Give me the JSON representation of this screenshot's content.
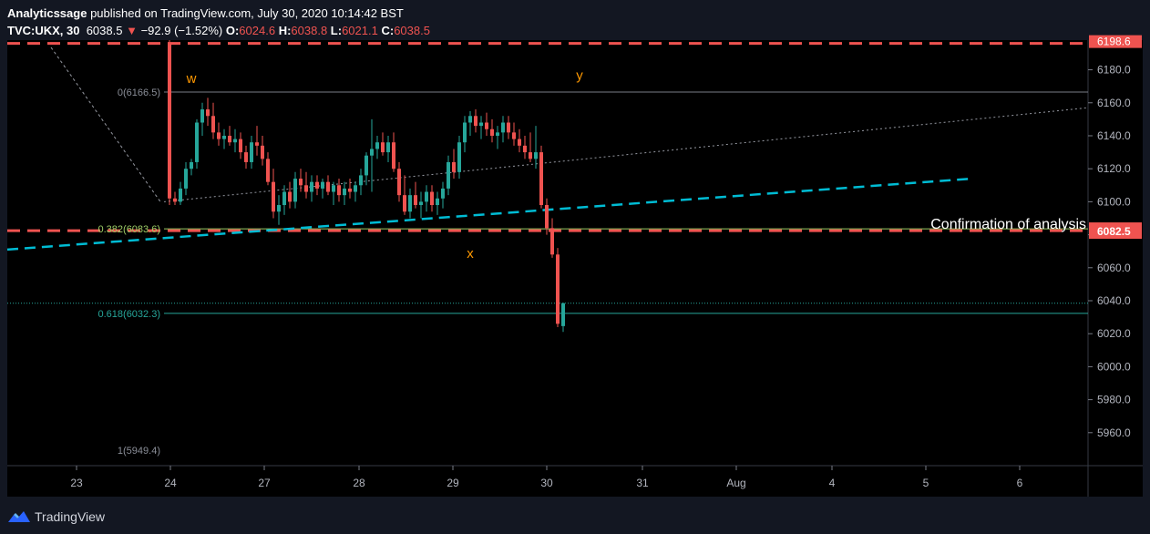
{
  "header": {
    "author": "Analyticssage",
    "published_text": "published on TradingView.com, July 30, 2020 10:14:42 BST",
    "symbol": "TVC:UKX, 30",
    "last": "6038.5",
    "change_arrow": "▼",
    "change": "−92.9 (−1.52%)",
    "o_label": "O:",
    "o_value": "6024.6",
    "h_label": "H:",
    "h_value": "6038.8",
    "l_label": "L:",
    "l_value": "6021.1",
    "c_label": "C:",
    "c_value": "6038.5"
  },
  "footer": {
    "brand": "TradingView"
  },
  "colors": {
    "background": "#131722",
    "up": "#26a69a",
    "down": "#ef5350",
    "axis_text": "#b2b5be",
    "label_orange": "#ff9800",
    "cyan": "#00bcd4",
    "fib_text": "#8a8e98",
    "fib_382_text": "#9ccc65",
    "fib_618_text": "#26a69a"
  },
  "chart_data": {
    "type": "candlestick",
    "y_range": [
      5940,
      6198
    ],
    "y_ticks": [
      5960,
      5980,
      6000,
      6020,
      6040,
      6060,
      6080,
      6100,
      6120,
      6140,
      6160,
      6180
    ],
    "y_top_tag": "6198.6",
    "price_tag": "6082.5",
    "x_ticks": [
      "23",
      "24",
      "27",
      "28",
      "29",
      "30",
      "31",
      "Aug",
      "4",
      "5",
      "6"
    ],
    "fib_levels": [
      {
        "label": "0(6166.5)",
        "value": 6166.5
      },
      {
        "label": "0.382(6083.6)",
        "value": 6083.6
      },
      {
        "label": "0.618(6032.3)",
        "value": 6032.3
      },
      {
        "label": "1(5949.4)",
        "value": 5949.4
      }
    ],
    "wave_labels": [
      {
        "text": "w",
        "bar": 4,
        "value": 6172
      },
      {
        "text": "x",
        "bar": 55,
        "value": 6066
      },
      {
        "text": "y",
        "bar": 75,
        "value": 6174
      }
    ],
    "annotation": "Confirmation of analysis",
    "resistance_levels": [
      6196,
      6082.5
    ],
    "last_price_line": 6038.5,
    "candles": [
      [
        6196,
        6198,
        6098,
        6102
      ],
      [
        6102,
        6106,
        6098,
        6100
      ],
      [
        6100,
        6112,
        6098,
        6108
      ],
      [
        6108,
        6124,
        6104,
        6120
      ],
      [
        6120,
        6126,
        6116,
        6124
      ],
      [
        6124,
        6150,
        6120,
        6148
      ],
      [
        6148,
        6160,
        6140,
        6156
      ],
      [
        6156,
        6163,
        6146,
        6152
      ],
      [
        6152,
        6160,
        6138,
        6142
      ],
      [
        6142,
        6148,
        6134,
        6138
      ],
      [
        6138,
        6144,
        6132,
        6140
      ],
      [
        6140,
        6146,
        6134,
        6136
      ],
      [
        6136,
        6144,
        6130,
        6138
      ],
      [
        6138,
        6142,
        6126,
        6130
      ],
      [
        6130,
        6134,
        6120,
        6124
      ],
      [
        6124,
        6140,
        6120,
        6136
      ],
      [
        6136,
        6146,
        6128,
        6134
      ],
      [
        6134,
        6140,
        6122,
        6126
      ],
      [
        6126,
        6130,
        6110,
        6112
      ],
      [
        6112,
        6120,
        6090,
        6094
      ],
      [
        6094,
        6104,
        6086,
        6098
      ],
      [
        6098,
        6110,
        6092,
        6106
      ],
      [
        6106,
        6112,
        6096,
        6100
      ],
      [
        6100,
        6118,
        6096,
        6114
      ],
      [
        6114,
        6120,
        6106,
        6110
      ],
      [
        6110,
        6118,
        6102,
        6106
      ],
      [
        6106,
        6116,
        6100,
        6112
      ],
      [
        6112,
        6116,
        6104,
        6108
      ],
      [
        6108,
        6114,
        6102,
        6112
      ],
      [
        6112,
        6116,
        6104,
        6106
      ],
      [
        6106,
        6112,
        6098,
        6110
      ],
      [
        6110,
        6114,
        6100,
        6104
      ],
      [
        6104,
        6112,
        6098,
        6108
      ],
      [
        6108,
        6114,
        6102,
        6106
      ],
      [
        6106,
        6112,
        6100,
        6110
      ],
      [
        6110,
        6120,
        6104,
        6116
      ],
      [
        6116,
        6130,
        6110,
        6128
      ],
      [
        6128,
        6150,
        6106,
        6132
      ],
      [
        6132,
        6140,
        6126,
        6136
      ],
      [
        6136,
        6142,
        6128,
        6130
      ],
      [
        6130,
        6140,
        6124,
        6136
      ],
      [
        6136,
        6142,
        6118,
        6120
      ],
      [
        6120,
        6124,
        6100,
        6104
      ],
      [
        6104,
        6116,
        6092,
        6094
      ],
      [
        6094,
        6108,
        6090,
        6104
      ],
      [
        6104,
        6112,
        6096,
        6098
      ],
      [
        6098,
        6106,
        6090,
        6100
      ],
      [
        6100,
        6110,
        6094,
        6106
      ],
      [
        6106,
        6110,
        6094,
        6098
      ],
      [
        6098,
        6106,
        6092,
        6102
      ],
      [
        6102,
        6112,
        6096,
        6108
      ],
      [
        6108,
        6128,
        6104,
        6124
      ],
      [
        6124,
        6132,
        6114,
        6118
      ],
      [
        6118,
        6140,
        6114,
        6136
      ],
      [
        6136,
        6152,
        6130,
        6148
      ],
      [
        6148,
        6155,
        6140,
        6152
      ],
      [
        6152,
        6156,
        6142,
        6146
      ],
      [
        6146,
        6152,
        6138,
        6148
      ],
      [
        6148,
        6154,
        6140,
        6144
      ],
      [
        6144,
        6150,
        6136,
        6140
      ],
      [
        6140,
        6146,
        6132,
        6142
      ],
      [
        6142,
        6152,
        6136,
        6148
      ],
      [
        6148,
        6152,
        6138,
        6142
      ],
      [
        6142,
        6148,
        6134,
        6138
      ],
      [
        6138,
        6144,
        6130,
        6134
      ],
      [
        6134,
        6140,
        6126,
        6130
      ],
      [
        6130,
        6142,
        6124,
        6126
      ],
      [
        6126,
        6146,
        6120,
        6130
      ],
      [
        6130,
        6134,
        6096,
        6098
      ],
      [
        6098,
        6102,
        6080,
        6084
      ],
      [
        6084,
        6090,
        6066,
        6068
      ],
      [
        6068,
        6072,
        6024,
        6026
      ],
      [
        6024.6,
        6038.8,
        6021.1,
        6038.5
      ]
    ]
  }
}
